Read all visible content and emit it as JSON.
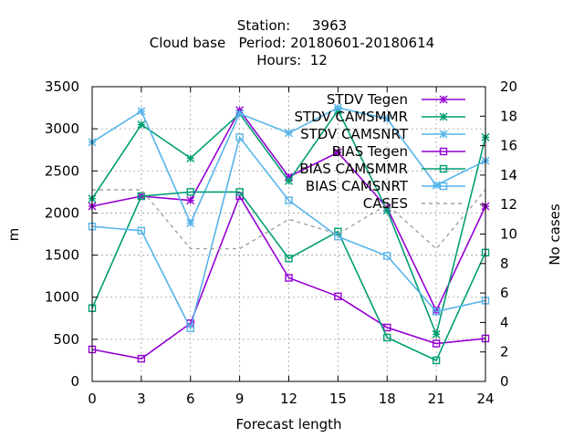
{
  "chart_data": {
    "type": "line",
    "title_lines": [
      "Station:     3963",
      "Cloud base   Period: 20180601-20180614",
      "Hours:  12"
    ],
    "xlabel": "Forecast length",
    "ylabel": "m",
    "y2label": "No cases",
    "x": [
      0,
      3,
      6,
      9,
      12,
      15,
      18,
      21,
      24
    ],
    "xlim": [
      0,
      24
    ],
    "xticks": [
      "0",
      "3",
      "6",
      "9",
      "12",
      "15",
      "18",
      "21",
      "24"
    ],
    "ylim": [
      0,
      3500
    ],
    "yticks": [
      "0",
      "500",
      "1000",
      "1500",
      "2000",
      "2500",
      "3000",
      "3500"
    ],
    "y2lim": [
      0,
      20
    ],
    "y2ticks": [
      "0",
      "2",
      "4",
      "6",
      "8",
      "10",
      "12",
      "14",
      "16",
      "18",
      "20"
    ],
    "grid": true,
    "legend_position": "top-right",
    "series": [
      {
        "name": "STDV Tegen",
        "color": "#9400d3",
        "marker": "star",
        "axis": "y",
        "values": [
          2080,
          2200,
          2150,
          3220,
          2430,
          2720,
          2060,
          840,
          2080
        ]
      },
      {
        "name": "STDV CAMSMMR",
        "color": "#009e73",
        "marker": "star",
        "axis": "y",
        "values": [
          2170,
          3050,
          2650,
          3180,
          2380,
          3220,
          2030,
          560,
          2900
        ]
      },
      {
        "name": "STDV CAMSNRT",
        "color": "#56b4e9",
        "marker": "star",
        "axis": "y",
        "values": [
          2840,
          3210,
          1880,
          3180,
          2950,
          3250,
          3120,
          2330,
          2620
        ]
      },
      {
        "name": "BIAS Tegen",
        "color": "#9400d3",
        "marker": "square",
        "axis": "y",
        "values": [
          380,
          270,
          690,
          2200,
          1230,
          1010,
          640,
          450,
          510
        ]
      },
      {
        "name": "BIAS CAMSMMR",
        "color": "#009e73",
        "marker": "square",
        "axis": "y",
        "values": [
          870,
          2200,
          2250,
          2250,
          1460,
          1780,
          520,
          250,
          1530
        ]
      },
      {
        "name": "BIAS CAMSNRT",
        "color": "#56b4e9",
        "marker": "square",
        "axis": "y",
        "values": [
          1840,
          1790,
          630,
          2900,
          2150,
          1720,
          1490,
          830,
          960
        ]
      },
      {
        "name": "CASES",
        "color": "#a0a0a0",
        "marker": "none",
        "dashed": true,
        "axis": "y2",
        "values": [
          13,
          13,
          9,
          9,
          11,
          10,
          12,
          9,
          13
        ]
      }
    ]
  }
}
